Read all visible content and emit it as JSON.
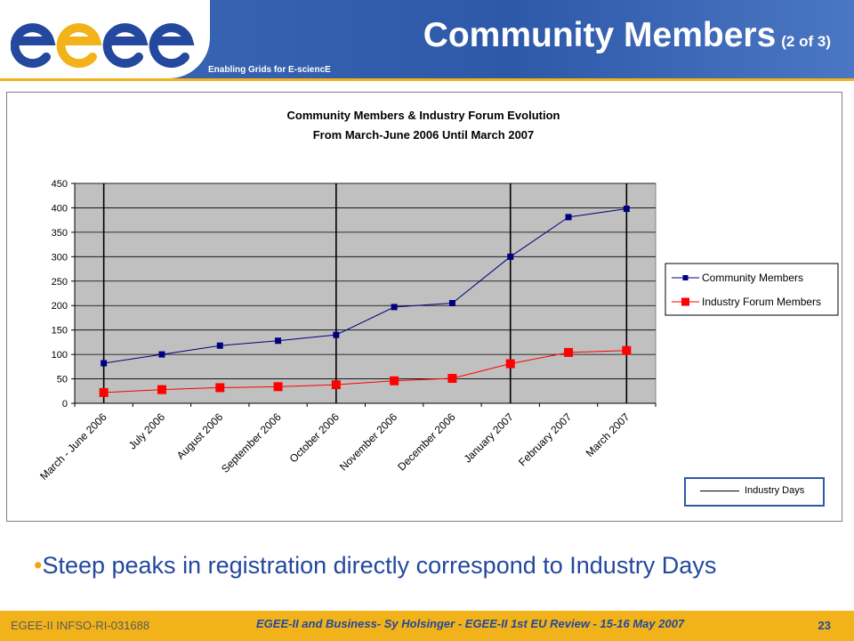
{
  "header": {
    "logo_text": "egee",
    "tagline": "Enabling Grids for E-sciencE",
    "title": "Community Members",
    "title_sub": "(2 of 3)"
  },
  "colors": {
    "header_blue": "#2e58a8",
    "accent_yellow": "#f2b21a",
    "community_series": "#00007f",
    "industry_series": "#ff0000",
    "plot_background": "#c0c0c0"
  },
  "chart_data": {
    "type": "line",
    "title": "Community Members & Industry Forum Evolution",
    "subtitle": "From March-June 2006 Until March 2007",
    "categories": [
      "March - June 2006",
      "July 2006",
      "August 2006",
      "September 2006",
      "October 2006",
      "November 2006",
      "December 2006",
      "January 2007",
      "February 2007",
      "March 2007"
    ],
    "series": [
      {
        "name": "Community Members",
        "values": [
          82,
          100,
          118,
          128,
          140,
          197,
          205,
          300,
          381,
          398
        ]
      },
      {
        "name": "Industry Forum Members",
        "values": [
          22,
          28,
          32,
          34,
          38,
          46,
          51,
          81,
          104,
          108
        ]
      }
    ],
    "ylim": [
      0,
      450
    ],
    "yticks": [
      0,
      50,
      100,
      150,
      200,
      250,
      300,
      350,
      400,
      450
    ],
    "industry_days_at": [
      "March - June 2006",
      "October 2006",
      "January 2007",
      "March 2007"
    ],
    "industry_days_label": "Industry Days",
    "grid": true,
    "legend_position": "right"
  },
  "bullet": {
    "marker": "•",
    "text": "Steep peaks in registration directly correspond to Industry Days"
  },
  "footer": {
    "left": "EGEE-II INFSO-RI-031688",
    "center": "EGEE-II and Business- Sy Holsinger - EGEE-II 1st EU Review - 15-16 May 2007",
    "page": "23"
  }
}
